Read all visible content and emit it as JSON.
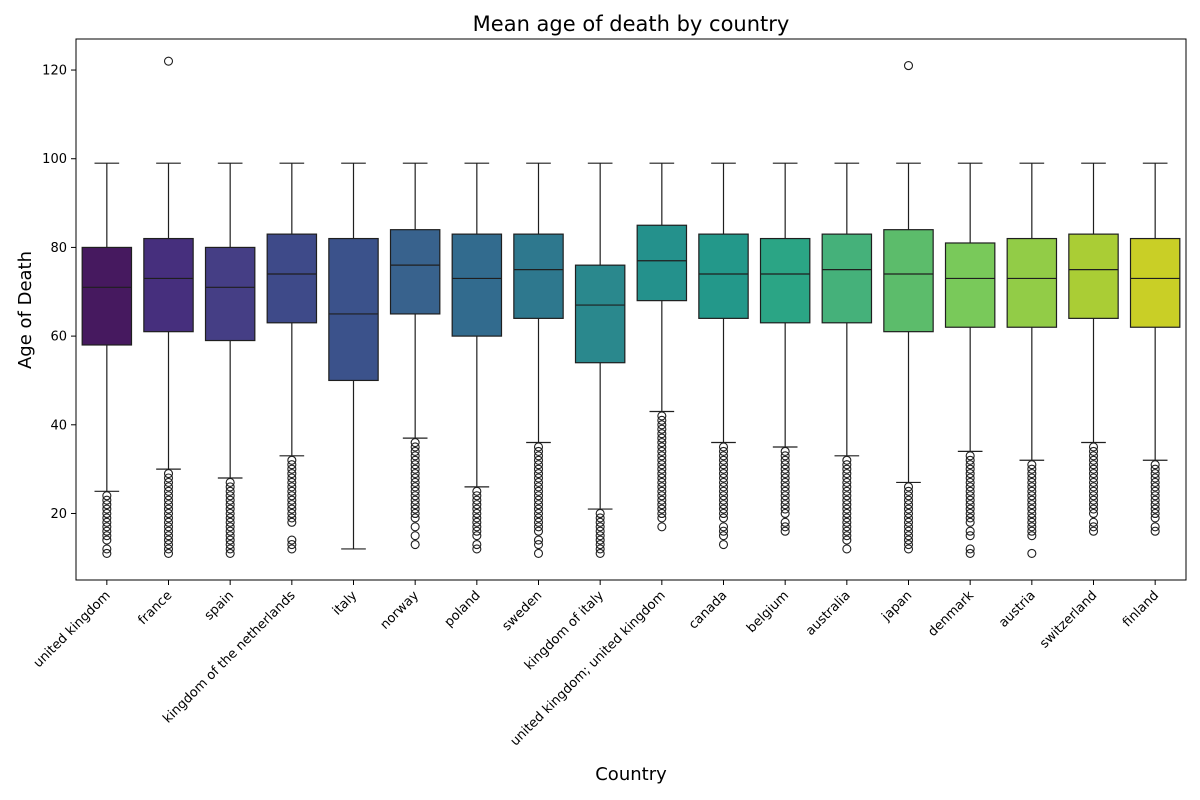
{
  "chart_data": {
    "type": "box",
    "title": "Mean age of death by country",
    "xlabel": "Country",
    "ylabel": "Age of Death",
    "ylim": [
      5,
      127
    ],
    "yticks": [
      20,
      40,
      60,
      80,
      100,
      120
    ],
    "grid": false,
    "legend": "none",
    "categories": [
      "united kingdom",
      "france",
      "spain",
      "kingdom of the netherlands",
      "italy",
      "norway",
      "poland",
      "sweden",
      "kingdom of italy",
      "united kingdom; united kingdom",
      "canada",
      "belgium",
      "australia",
      "japan",
      "denmark",
      "austria",
      "switzerland",
      "finland"
    ],
    "colors": [
      "#46195f",
      "#462f7d",
      "#453e85",
      "#3e4a89",
      "#3b528b",
      "#38628d",
      "#326b8e",
      "#2e788e",
      "#2a888d",
      "#24918c",
      "#23988a",
      "#2ba585",
      "#45b17a",
      "#5cbc6b",
      "#79c95a",
      "#92cc47",
      "#aacd35",
      "#c9cf26"
    ],
    "boxes": [
      {
        "lower_whisker": 25,
        "q1": 58,
        "median": 71,
        "q3": 80,
        "upper_whisker": 99,
        "outliers": [
          11,
          12,
          14,
          15,
          16,
          17,
          18,
          19,
          20,
          21,
          22,
          23,
          24
        ]
      },
      {
        "lower_whisker": 30,
        "q1": 61,
        "median": 73,
        "q3": 82,
        "upper_whisker": 99,
        "outliers": [
          11,
          12,
          13,
          14,
          15,
          16,
          17,
          18,
          19,
          20,
          21,
          22,
          23,
          24,
          25,
          26,
          27,
          28,
          29,
          122
        ]
      },
      {
        "lower_whisker": 28,
        "q1": 59,
        "median": 71,
        "q3": 80,
        "upper_whisker": 99,
        "outliers": [
          11,
          12,
          13,
          14,
          15,
          16,
          17,
          18,
          19,
          20,
          21,
          22,
          23,
          24,
          25,
          26,
          27
        ]
      },
      {
        "lower_whisker": 33,
        "q1": 63,
        "median": 74,
        "q3": 83,
        "upper_whisker": 99,
        "outliers": [
          12,
          13,
          14,
          18,
          19,
          20,
          21,
          22,
          23,
          24,
          25,
          26,
          27,
          28,
          29,
          30,
          31,
          32
        ]
      },
      {
        "lower_whisker": 12,
        "q1": 50,
        "median": 65,
        "q3": 82,
        "upper_whisker": 99,
        "outliers": []
      },
      {
        "lower_whisker": 37,
        "q1": 65,
        "median": 76,
        "q3": 84,
        "upper_whisker": 99,
        "outliers": [
          13,
          15,
          17,
          19,
          20,
          21,
          22,
          23,
          24,
          25,
          26,
          27,
          28,
          29,
          30,
          31,
          32,
          33,
          34,
          35,
          36
        ]
      },
      {
        "lower_whisker": 26,
        "q1": 60,
        "median": 73,
        "q3": 83,
        "upper_whisker": 99,
        "outliers": [
          12,
          13,
          15,
          16,
          17,
          18,
          19,
          20,
          21,
          22,
          23,
          24,
          25
        ]
      },
      {
        "lower_whisker": 36,
        "q1": 64,
        "median": 75,
        "q3": 83,
        "upper_whisker": 99,
        "outliers": [
          11,
          13,
          14,
          16,
          17,
          18,
          19,
          20,
          21,
          22,
          23,
          24,
          25,
          26,
          27,
          28,
          29,
          30,
          31,
          32,
          33,
          34,
          35
        ]
      },
      {
        "lower_whisker": 21,
        "q1": 54,
        "median": 67,
        "q3": 76,
        "upper_whisker": 99,
        "outliers": [
          11,
          12,
          13,
          14,
          15,
          16,
          17,
          18,
          19,
          20
        ]
      },
      {
        "lower_whisker": 43,
        "q1": 68,
        "median": 77,
        "q3": 85,
        "upper_whisker": 99,
        "outliers": [
          17,
          19,
          20,
          21,
          22,
          23,
          24,
          25,
          26,
          27,
          28,
          29,
          30,
          31,
          32,
          33,
          34,
          35,
          36,
          37,
          38,
          39,
          40,
          41,
          42
        ]
      },
      {
        "lower_whisker": 36,
        "q1": 64,
        "median": 74,
        "q3": 83,
        "upper_whisker": 99,
        "outliers": [
          13,
          15,
          16,
          17,
          19,
          20,
          21,
          22,
          23,
          24,
          25,
          26,
          27,
          28,
          29,
          30,
          31,
          32,
          33,
          34,
          35
        ]
      },
      {
        "lower_whisker": 35,
        "q1": 63,
        "median": 74,
        "q3": 82,
        "upper_whisker": 99,
        "outliers": [
          16,
          17,
          18,
          20,
          21,
          22,
          23,
          24,
          25,
          26,
          27,
          28,
          29,
          30,
          31,
          32,
          33,
          34
        ]
      },
      {
        "lower_whisker": 33,
        "q1": 63,
        "median": 75,
        "q3": 83,
        "upper_whisker": 99,
        "outliers": [
          12,
          14,
          15,
          16,
          17,
          18,
          19,
          20,
          21,
          22,
          23,
          24,
          25,
          26,
          27,
          28,
          29,
          30,
          31,
          32
        ]
      },
      {
        "lower_whisker": 27,
        "q1": 61,
        "median": 74,
        "q3": 84,
        "upper_whisker": 99,
        "outliers": [
          12,
          13,
          14,
          15,
          16,
          17,
          18,
          19,
          20,
          21,
          22,
          23,
          24,
          25,
          26,
          121
        ]
      },
      {
        "lower_whisker": 34,
        "q1": 62,
        "median": 73,
        "q3": 81,
        "upper_whisker": 99,
        "outliers": [
          11,
          12,
          15,
          16,
          18,
          19,
          20,
          21,
          22,
          23,
          24,
          25,
          26,
          27,
          28,
          29,
          30,
          31,
          32,
          33
        ]
      },
      {
        "lower_whisker": 32,
        "q1": 62,
        "median": 73,
        "q3": 82,
        "upper_whisker": 99,
        "outliers": [
          11,
          15,
          16,
          17,
          18,
          19,
          20,
          21,
          22,
          23,
          24,
          25,
          26,
          27,
          28,
          29,
          30,
          31
        ]
      },
      {
        "lower_whisker": 36,
        "q1": 64,
        "median": 75,
        "q3": 83,
        "upper_whisker": 99,
        "outliers": [
          16,
          17,
          18,
          20,
          21,
          22,
          23,
          24,
          25,
          26,
          27,
          28,
          29,
          30,
          31,
          32,
          33,
          34,
          35
        ]
      },
      {
        "lower_whisker": 32,
        "q1": 62,
        "median": 73,
        "q3": 82,
        "upper_whisker": 99,
        "outliers": [
          16,
          17,
          19,
          20,
          21,
          22,
          23,
          24,
          25,
          26,
          27,
          28,
          29,
          30,
          31
        ]
      }
    ]
  }
}
